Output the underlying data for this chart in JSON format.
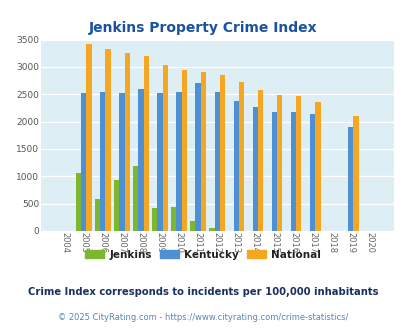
{
  "title": "Jenkins Property Crime Index",
  "title_color": "#1a52a0",
  "years": [
    2004,
    2005,
    2006,
    2007,
    2008,
    2009,
    2010,
    2011,
    2012,
    2013,
    2014,
    2015,
    2016,
    2017,
    2018,
    2019,
    2020
  ],
  "jenkins": [
    0,
    1065,
    580,
    940,
    1180,
    420,
    430,
    190,
    55,
    0,
    0,
    0,
    0,
    0,
    0,
    0,
    0
  ],
  "kentucky": [
    0,
    2530,
    2550,
    2530,
    2590,
    2530,
    2550,
    2700,
    2550,
    2370,
    2260,
    2180,
    2180,
    2140,
    0,
    1900,
    0
  ],
  "national": [
    0,
    3420,
    3330,
    3260,
    3200,
    3040,
    2950,
    2900,
    2850,
    2720,
    2580,
    2490,
    2460,
    2360,
    0,
    2100,
    0
  ],
  "jenkins_color": "#7cb82f",
  "kentucky_color": "#4d91d4",
  "national_color": "#f5a623",
  "bg_color": "#ddeef5",
  "grid_color": "#ffffff",
  "ylim": [
    0,
    3500
  ],
  "yticks": [
    0,
    500,
    1000,
    1500,
    2000,
    2500,
    3000,
    3500
  ],
  "subtitle": "Crime Index corresponds to incidents per 100,000 inhabitants",
  "subtitle_color": "#1a3060",
  "footer": "© 2025 CityRating.com - https://www.cityrating.com/crime-statistics/",
  "footer_color": "#5588bb",
  "legend_labels": [
    "Jenkins",
    "Kentucky",
    "National"
  ],
  "bar_width": 0.28
}
